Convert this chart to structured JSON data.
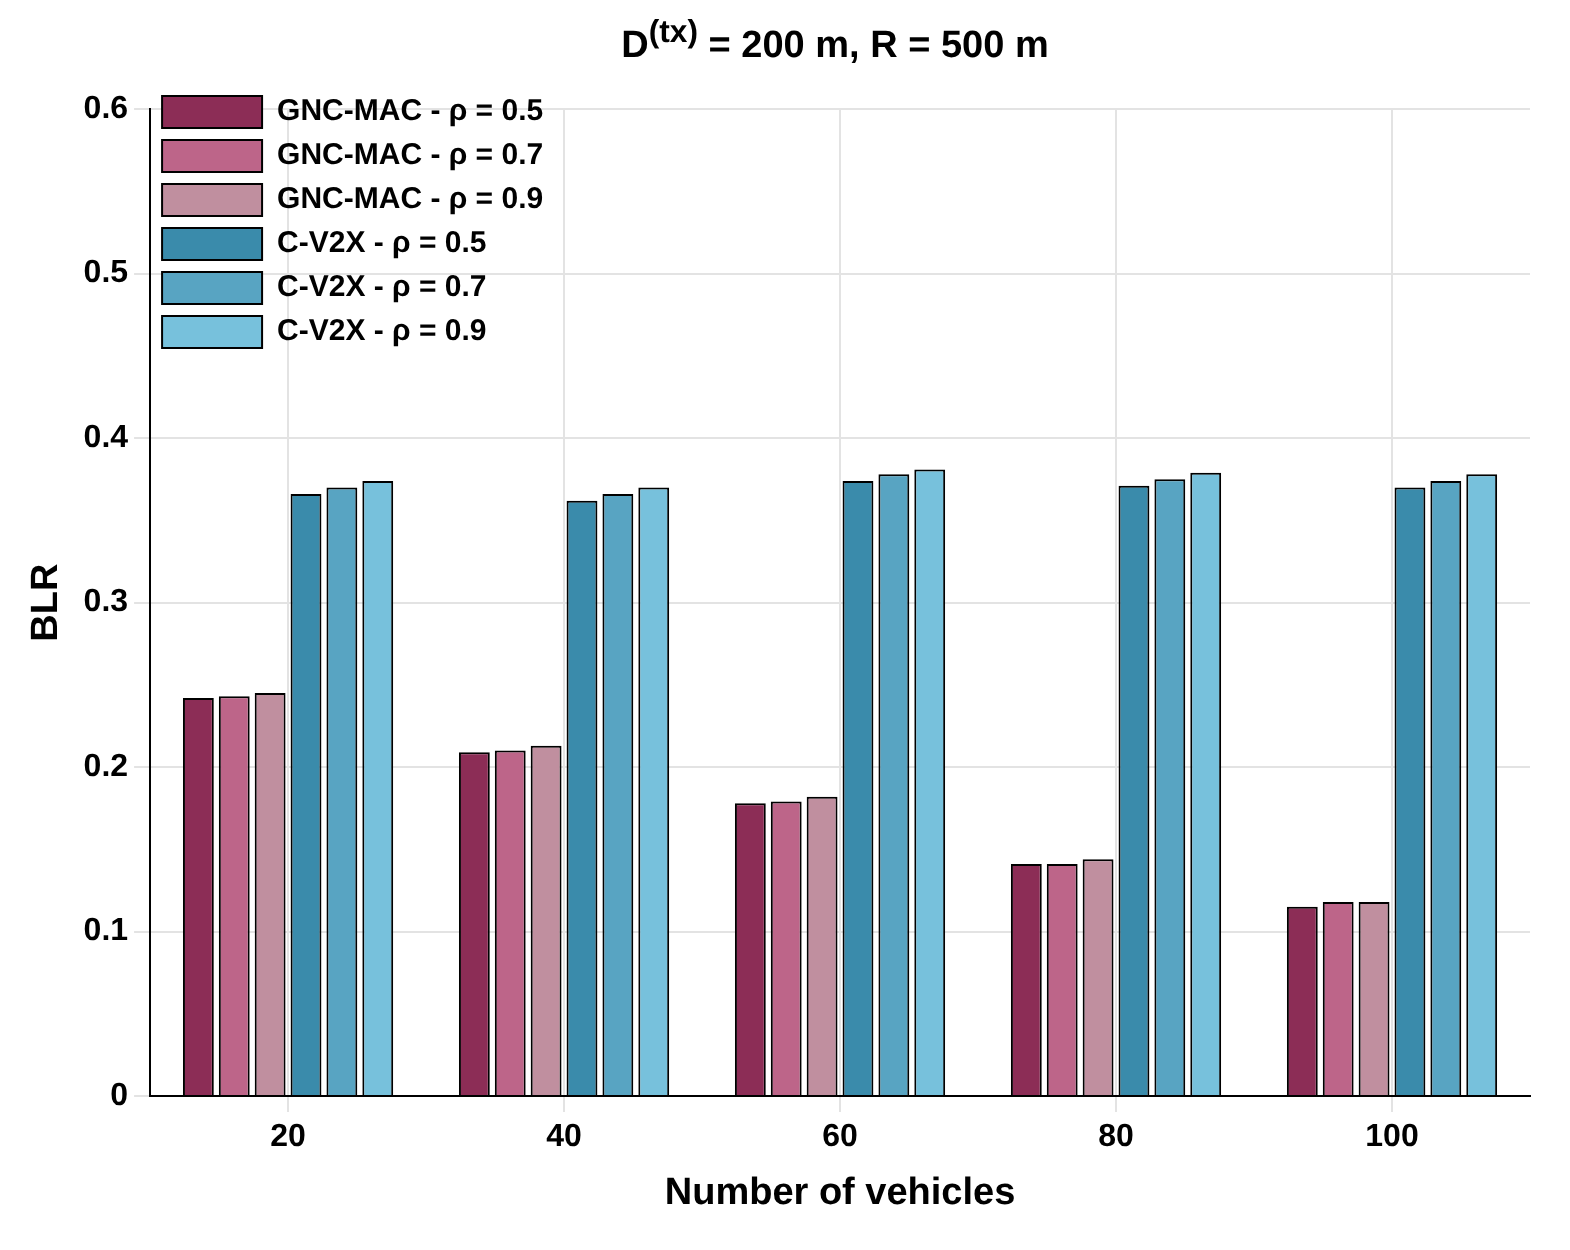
{
  "chart_data": {
    "type": "bar",
    "title": "D$^{(tx)}$ = 200 m, R = 500 m",
    "xlabel": "Number of vehicles",
    "ylabel": "BLR",
    "categories": [
      "20",
      "40",
      "60",
      "80",
      "100"
    ],
    "series": [
      {
        "name": "GNC-MAC - ρ = 0.5",
        "color": "#8c2d56",
        "values": [
          0.242,
          0.209,
          0.178,
          0.141,
          0.115
        ]
      },
      {
        "name": "GNC-MAC - ρ = 0.7",
        "color": "#bd6589",
        "values": [
          0.243,
          0.21,
          0.179,
          0.141,
          0.118
        ]
      },
      {
        "name": "GNC-MAC - ρ = 0.9",
        "color": "#c08f9f",
        "values": [
          0.245,
          0.213,
          0.182,
          0.144,
          0.118
        ]
      },
      {
        "name": "C-V2X - ρ = 0.5",
        "color": "#3a8bab",
        "values": [
          0.366,
          0.362,
          0.374,
          0.371,
          0.37
        ]
      },
      {
        "name": "C-V2X - ρ = 0.7",
        "color": "#58a4c2",
        "values": [
          0.37,
          0.366,
          0.378,
          0.375,
          0.374
        ]
      },
      {
        "name": "C-V2X - ρ = 0.9",
        "color": "#77c1dc",
        "values": [
          0.374,
          0.37,
          0.381,
          0.379,
          0.378
        ]
      }
    ],
    "ylim": [
      0,
      0.6
    ],
    "yticks": [
      0,
      0.1,
      0.2,
      0.3,
      0.4,
      0.5,
      0.6
    ],
    "grid": true,
    "legend": "top left"
  }
}
